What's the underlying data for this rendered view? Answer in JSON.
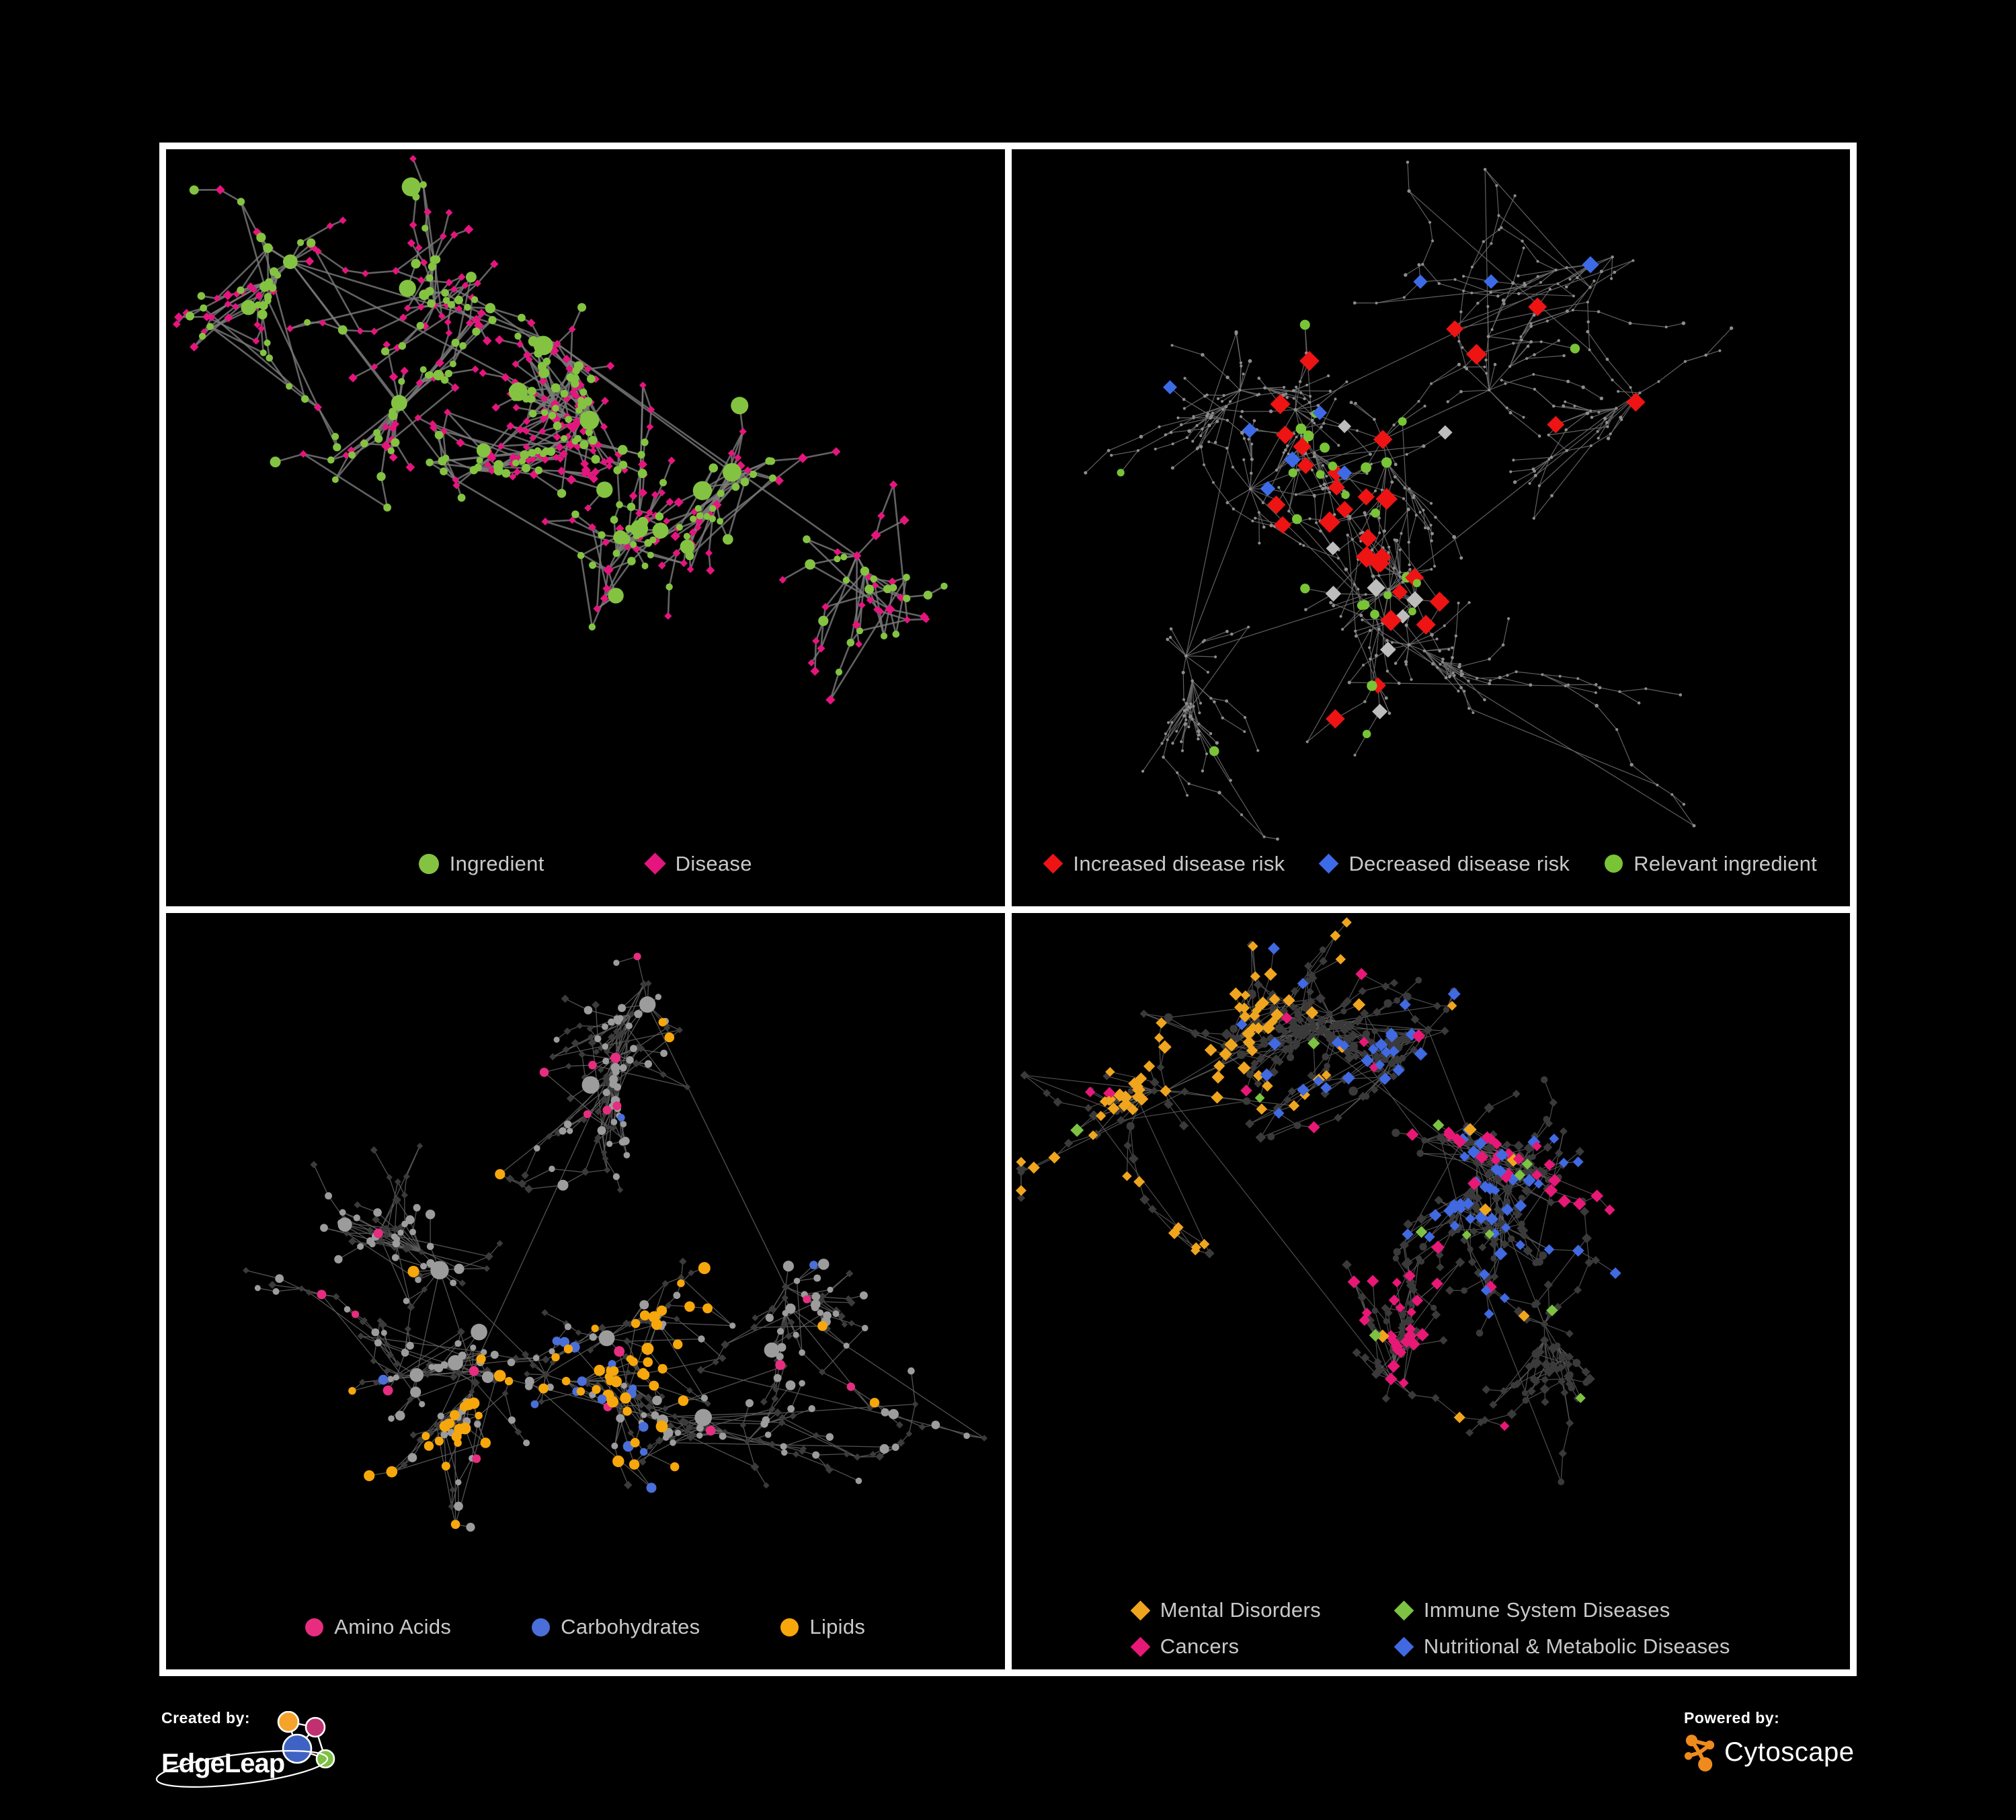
{
  "figure": {
    "background": "#000000",
    "frame_color": "#ffffff",
    "legend_text_color": "#c9c9c9"
  },
  "panels": [
    {
      "name": "ingredient-disease-network",
      "legend": {
        "columns": 1,
        "items": [
          {
            "label": "Ingredient",
            "shape": "circle",
            "color": "#84c341"
          },
          {
            "label": "Disease",
            "shape": "diamond",
            "color": "#e5157e"
          }
        ]
      },
      "network": {
        "seed": 7,
        "node_count": 540,
        "clusters": 9,
        "edge_color": "#7a7a7a",
        "edge_width": 2.6,
        "edge_opacity": 0.8,
        "extra_edge_ratio": 0.22,
        "step_min": 16,
        "step_max": 52,
        "base_classes": [
          {
            "name": "disease",
            "shape": "diamond",
            "color": "#e5157e",
            "size_min": 9,
            "size_max": 14,
            "weight": 0.56
          },
          {
            "name": "ingredient",
            "shape": "circle",
            "color": "#84c341",
            "size_min": 10,
            "size_max": 17,
            "weight": 0.44,
            "hub_size": 27
          }
        ],
        "overlays": []
      }
    },
    {
      "name": "disease-risk-network",
      "legend": {
        "columns": 1,
        "items": [
          {
            "label": "Increased disease risk",
            "shape": "diamond",
            "color": "#ee1414"
          },
          {
            "label": "Decreased disease risk",
            "shape": "diamond",
            "color": "#3d6be8"
          },
          {
            "label": "Relevant ingredient",
            "shape": "circle",
            "color": "#79c337"
          }
        ]
      },
      "network": {
        "seed": 21,
        "node_count": 640,
        "clusters": 10,
        "edge_color": "#6a6a6a",
        "edge_width": 1.2,
        "edge_opacity": 0.9,
        "extra_edge_ratio": 0.08,
        "step_min": 22,
        "step_max": 58,
        "base_classes": [
          {
            "name": "other-node",
            "shape": "circle",
            "color": "#8d8d8d",
            "size_min": 4,
            "size_max": 6,
            "weight": 1
          }
        ],
        "overlays": [
          {
            "name": "increased-risk",
            "shape": "diamond",
            "color": "#ee1414",
            "size_min": 20,
            "size_max": 28,
            "count": 31,
            "cluster_bias": [
              3,
              4,
              5
            ]
          },
          {
            "name": "decreased-risk",
            "shape": "diamond",
            "color": "#3d6be8",
            "size_min": 17,
            "size_max": 23,
            "count": 9,
            "cluster_bias": [
              2,
              8
            ]
          },
          {
            "name": "unchanged-risk",
            "shape": "diamond",
            "color": "#bdbdbd",
            "size_min": 17,
            "size_max": 23,
            "count": 9,
            "cluster_bias": [
              3,
              5
            ]
          },
          {
            "name": "relevant-ingredient",
            "shape": "circle",
            "color": "#79c337",
            "size_min": 11,
            "size_max": 16,
            "count": 28,
            "cluster_bias": [
              2,
              3,
              4,
              5
            ]
          }
        ]
      }
    },
    {
      "name": "ingredient-class-network",
      "legend": {
        "columns": 1,
        "items": [
          {
            "label": "Amino Acids",
            "shape": "circle",
            "color": "#e72d80"
          },
          {
            "label": "Carbohydrates",
            "shape": "circle",
            "color": "#4a6fd9"
          },
          {
            "label": "Lipids",
            "shape": "circle",
            "color": "#f6a70c"
          }
        ]
      },
      "network": {
        "seed": 33,
        "node_count": 620,
        "clusters": 9,
        "edge_color": "#606060",
        "edge_width": 1.3,
        "edge_opacity": 0.85,
        "extra_edge_ratio": 0.2,
        "step_min": 16,
        "step_max": 52,
        "base_classes": [
          {
            "name": "disease",
            "shape": "diamond",
            "color": "#3b3b3b",
            "size_min": 8,
            "size_max": 12,
            "weight": 0.62
          },
          {
            "name": "other-ingredient",
            "shape": "circle",
            "color": "#9c9c9c",
            "size_min": 9,
            "size_max": 17,
            "weight": 0.38,
            "hub_size": 23
          }
        ],
        "overlays": [
          {
            "name": "lipids",
            "shape": "circle",
            "color": "#f6a70c",
            "size_min": 11,
            "size_max": 18,
            "count": 72,
            "cluster_bias": [
              2,
              3,
              4
            ]
          },
          {
            "name": "carbohydrates",
            "shape": "circle",
            "color": "#4a6fd9",
            "size_min": 11,
            "size_max": 16,
            "count": 17,
            "cluster_bias": [
              3
            ]
          },
          {
            "name": "amino-acids",
            "shape": "circle",
            "color": "#e72d80",
            "size_min": 11,
            "size_max": 16,
            "count": 19,
            "cluster_bias": []
          }
        ]
      }
    },
    {
      "name": "disease-category-network",
      "legend": {
        "columns": 2,
        "items": [
          {
            "label": "Mental Disorders",
            "shape": "diamond",
            "color": "#f0a51f"
          },
          {
            "label": "Immune System Diseases",
            "shape": "diamond",
            "color": "#7dc242"
          },
          {
            "label": "Cancers",
            "shape": "diamond",
            "color": "#e81877"
          },
          {
            "label": "Nutritional & Metabolic Diseases",
            "shape": "diamond",
            "color": "#4169e1"
          }
        ]
      },
      "network": {
        "seed": 55,
        "node_count": 720,
        "clusters": 10,
        "edge_color": "#5a5a5a",
        "edge_width": 1.2,
        "edge_opacity": 0.85,
        "extra_edge_ratio": 0.16,
        "step_min": 16,
        "step_max": 50,
        "base_classes": [
          {
            "name": "other-disease",
            "shape": "diamond",
            "color": "#3a3a3a",
            "size_min": 10,
            "size_max": 15,
            "weight": 0.72
          },
          {
            "name": "ingredient",
            "shape": "circle",
            "color": "#3a3a3a",
            "size_min": 9,
            "size_max": 14,
            "weight": 0.28
          }
        ],
        "overlays": [
          {
            "name": "mental-disorders",
            "shape": "diamond",
            "color": "#f0a51f",
            "size_min": 12,
            "size_max": 17,
            "count": 85,
            "cluster_bias": [
              0,
              1
            ]
          },
          {
            "name": "cancers",
            "shape": "diamond",
            "color": "#e81877",
            "size_min": 12,
            "size_max": 17,
            "count": 62,
            "cluster_bias": [
              4,
              5
            ]
          },
          {
            "name": "nutritional-metabolic",
            "shape": "diamond",
            "color": "#4169e1",
            "size_min": 12,
            "size_max": 17,
            "count": 72,
            "cluster_bias": [
              6,
              7,
              8
            ]
          },
          {
            "name": "immune-system",
            "shape": "diamond",
            "color": "#7dc242",
            "size_min": 12,
            "size_max": 17,
            "count": 12,
            "cluster_bias": []
          }
        ]
      }
    }
  ],
  "footer": {
    "created_by_label": "Created by:",
    "edgeleap_name": "EdgeLeap",
    "edgeleap_icon": "network-nodes-icon",
    "edgeleap_icon_colors": {
      "orange": "#f5a32a",
      "magenta": "#c2316f",
      "blue": "#3e63c4",
      "green": "#7cc143"
    },
    "powered_by_label": "Powered by:",
    "cytoscape_name": "Cytoscape",
    "cytoscape_icon": "cytoscape-network-icon",
    "cytoscape_icon_color": "#ef8b1d"
  }
}
